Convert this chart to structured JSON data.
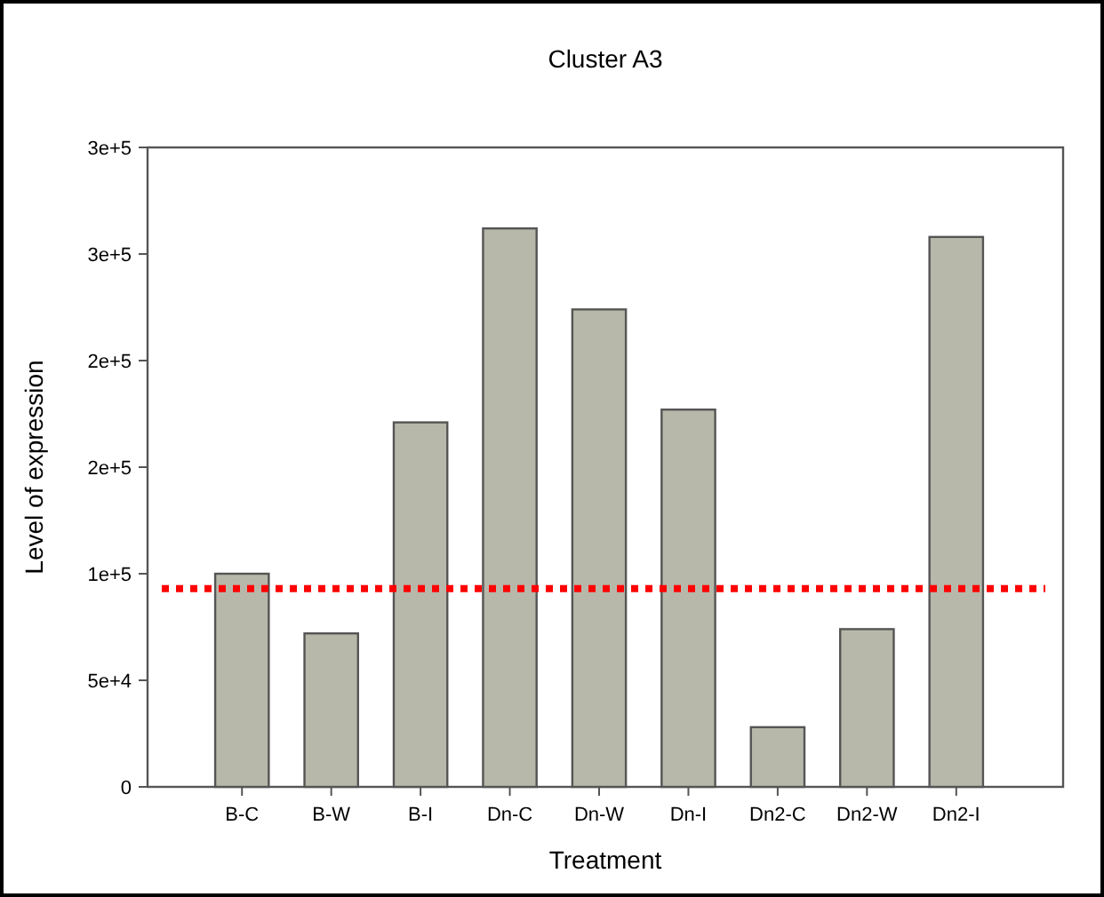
{
  "chart_data": {
    "type": "bar",
    "title": "Cluster A3",
    "xlabel": "Treatment",
    "ylabel": "Level of expression",
    "categories": [
      "B-C",
      "B-W",
      "B-I",
      "Dn-C",
      "Dn-W",
      "Dn-I",
      "Dn2-C",
      "Dn2-W",
      "Dn2-I"
    ],
    "values": [
      100000,
      72000,
      171000,
      262000,
      224000,
      177000,
      28000,
      74000,
      258000
    ],
    "color": "#b8b8aa",
    "ylim": [
      0,
      300000
    ],
    "yticks": [
      0,
      {
        "value": 50000,
        "label": "5e+4"
      },
      {
        "value": 100000,
        "label": "1e+5"
      },
      {
        "value": 150000,
        "label": "2e+5"
      },
      {
        "value": 200000,
        "label": "2e+5"
      },
      {
        "value": 250000,
        "label": "3e+5"
      },
      {
        "value": 300000,
        "label": "3e+5"
      }
    ],
    "ref_lines": [
      {
        "axis": "y",
        "value": 93000,
        "color": "#ff0000",
        "line_style": "dotted"
      }
    ],
    "grid": false
  }
}
